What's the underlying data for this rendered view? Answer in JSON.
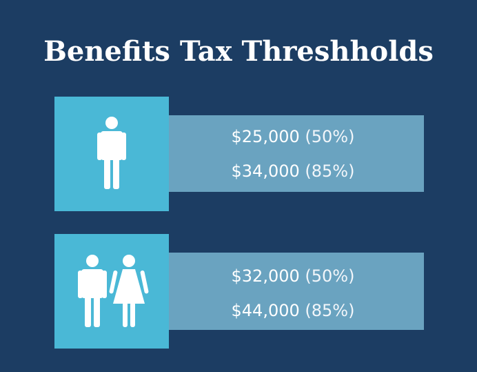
{
  "title": "Benefits Tax Threshholds",
  "rows": [
    {
      "lines": [
        {
          "amount": "$25,000",
          "rate": "(50%)"
        },
        {
          "amount": "$34,000",
          "rate": "(85%)"
        }
      ]
    },
    {
      "lines": [
        {
          "amount": "$32,000",
          "rate": "(50%)"
        },
        {
          "amount": "$44,000",
          "rate": "(85%)"
        }
      ]
    }
  ]
}
